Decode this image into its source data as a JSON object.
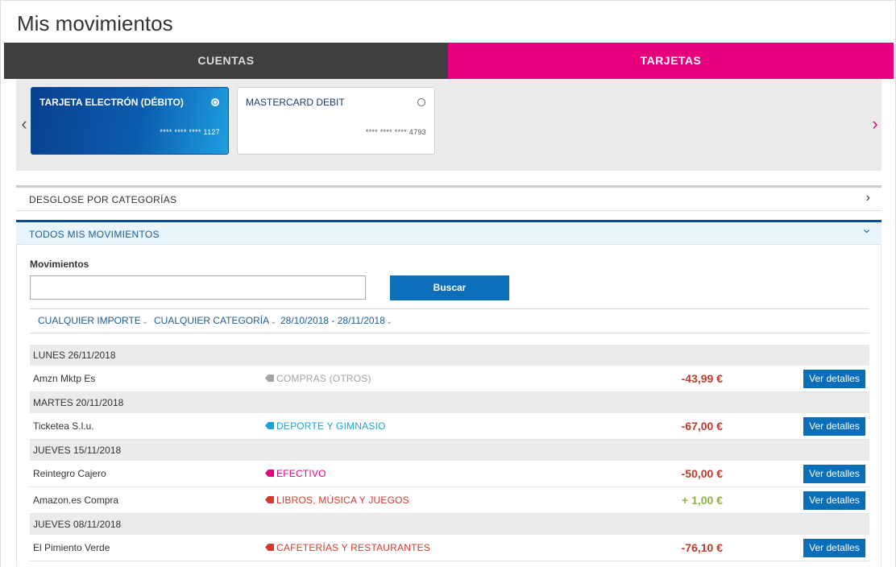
{
  "page": {
    "title": "Mis movimientos"
  },
  "tabs": [
    {
      "label": "CUENTAS"
    },
    {
      "label": "TARJETAS"
    }
  ],
  "cards": [
    {
      "name": "TARJETA ELECTRÓN (DÉBITO)",
      "number": "**** **** **** 1127",
      "selected": true
    },
    {
      "name": "MASTERCARD DEBIT",
      "number": "**** **** **** 4793",
      "selected": false
    }
  ],
  "accordions": {
    "desglose": "DESGLOSE POR CATEGORÍAS",
    "todos": "TODOS MIS MOVIMIENTOS"
  },
  "search": {
    "label": "Movimientos",
    "value": "",
    "placeholder": "",
    "button": "Buscar"
  },
  "filters": {
    "importe": "CUALQUIER IMPORTE",
    "categoria": "CUALQUIER CATEGORÍA",
    "fechas": "28/10/2018 - 28/11/2018"
  },
  "colors": {
    "brand_magenta": "#e6007e",
    "brand_blue": "#0a6eb8",
    "negative": "#c0392b",
    "positive": "#8db33d",
    "cat_grey": "#a3a3a3",
    "cat_sport": "#1aa3d9",
    "cat_cash": "#e6007e",
    "cat_red": "#d63a2e"
  },
  "movements": [
    {
      "date": "LUNES 26/11/2018",
      "items": [
        {
          "desc": "Amzn Mktp Es",
          "category": "COMPRAS (OTROS)",
          "cat_color": "#a3a3a3",
          "amount": "-43,99 €",
          "amount_color": "#c0392b",
          "button": "Ver detalles"
        }
      ]
    },
    {
      "date": "MARTES 20/11/2018",
      "items": [
        {
          "desc": "Ticketea S.l.u.",
          "category": "DEPORTE Y GIMNASIO",
          "cat_color": "#1aa3d9",
          "amount": "-67,00 €",
          "amount_color": "#c0392b",
          "button": "Ver detalles"
        }
      ]
    },
    {
      "date": "JUEVES 15/11/2018",
      "items": [
        {
          "desc": "Reintegro Cajero",
          "category": "EFECTIVO",
          "cat_color": "#e6007e",
          "amount": "-50,00 €",
          "amount_color": "#c0392b",
          "button": "Ver detalles"
        },
        {
          "desc": "Amazon.es Compra",
          "category": "LIBROS, MÚSICA Y JUEGOS",
          "cat_color": "#d63a2e",
          "amount": "+ 1,00 €",
          "amount_color": "#8db33d",
          "button": "Ver detalles"
        }
      ]
    },
    {
      "date": "JUEVES 08/11/2018",
      "items": [
        {
          "desc": "El Pimiento Verde",
          "category": "CAFETERÍAS Y RESTAURANTES",
          "cat_color": "#d63a2e",
          "amount": "-76,10 €",
          "amount_color": "#c0392b",
          "button": "Ver detalles"
        }
      ]
    }
  ]
}
